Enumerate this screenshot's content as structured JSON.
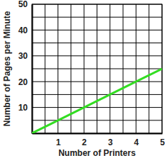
{
  "chart_data": {
    "type": "line",
    "xlabel": "Number of Printers",
    "ylabel": "Number of Pages per Minute",
    "x": [
      0,
      1,
      2,
      3,
      4,
      5
    ],
    "values": [
      0,
      5,
      10,
      15,
      20,
      25
    ],
    "color": "#33dd22",
    "xlim": [
      0,
      5
    ],
    "xticks": [
      1,
      2,
      3,
      4,
      5
    ],
    "ylim": [
      0,
      50
    ],
    "yticks": [
      10,
      20,
      30,
      40,
      50
    ],
    "grid": true
  }
}
